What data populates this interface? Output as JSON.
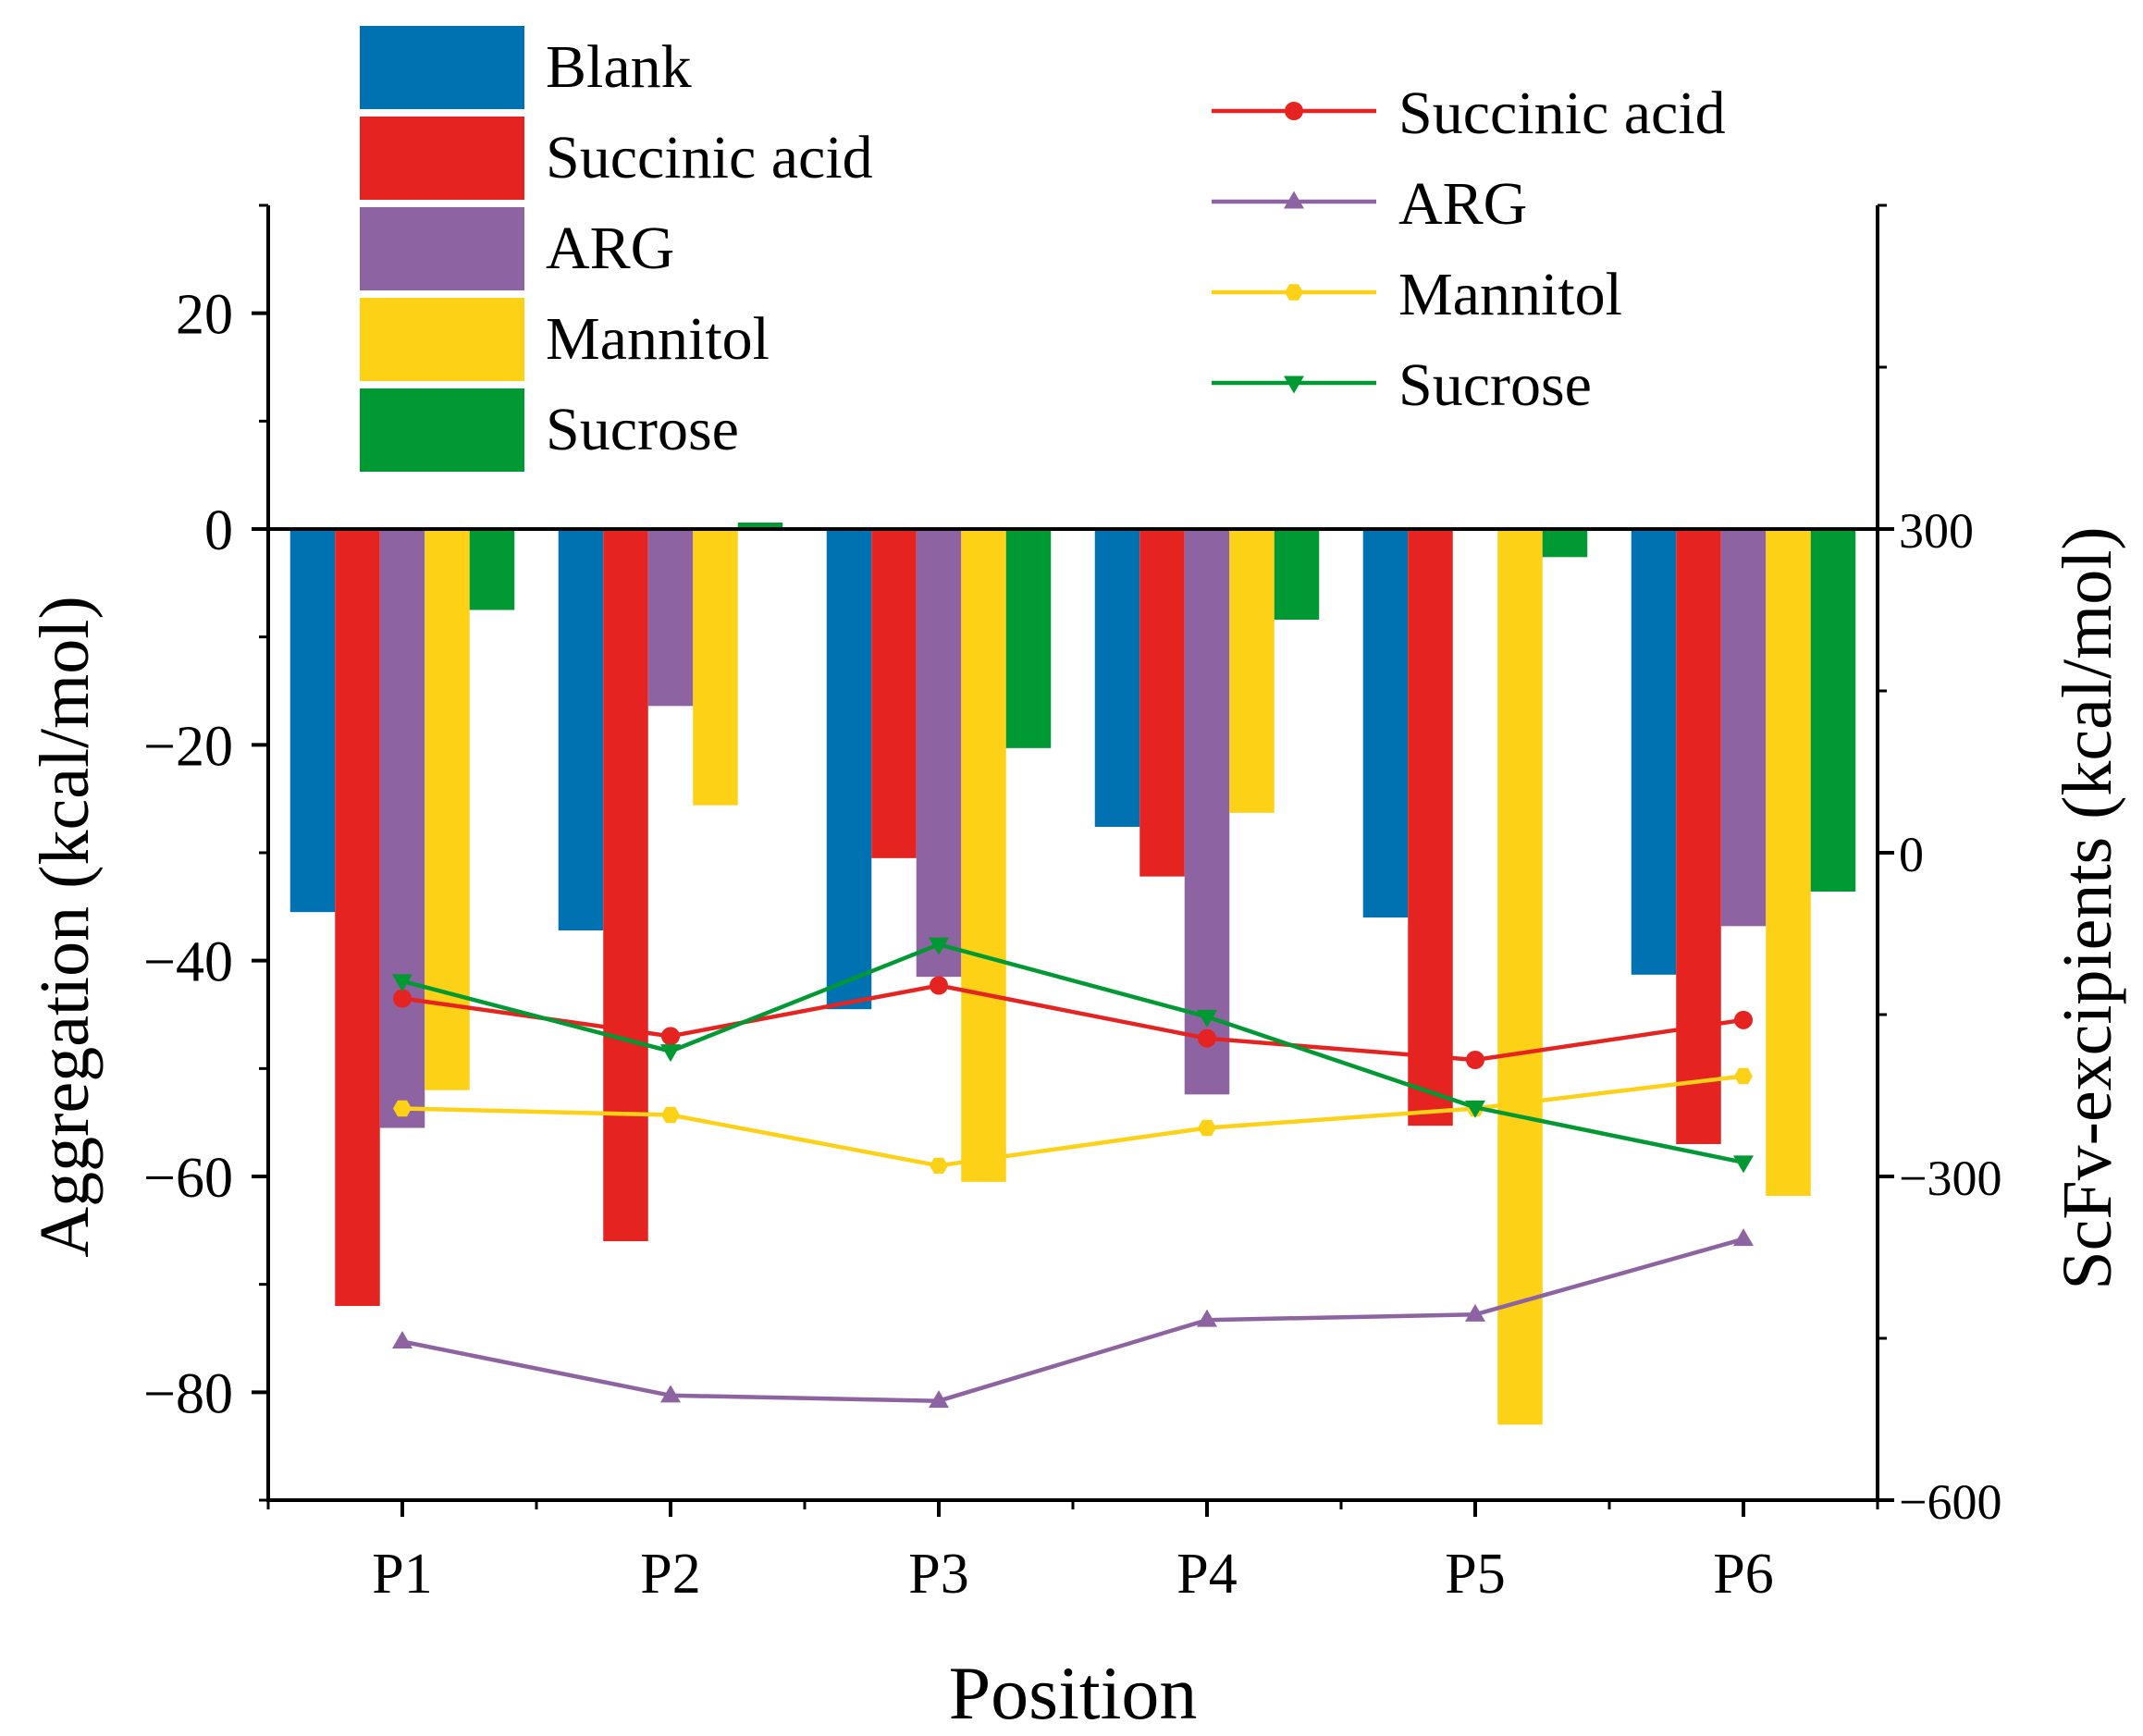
{
  "chart_data": {
    "type": "bar+line",
    "xlabel": "Position",
    "ylabel_left": "Aggregation (kcal/mol)",
    "ylabel_right": "ScFv-excipients (kcal/mol)",
    "categories": [
      "P1",
      "P2",
      "P3",
      "P4",
      "P5",
      "P6"
    ],
    "ylim_left": [
      -90,
      30
    ],
    "yticks_left": [
      20,
      0,
      -20,
      -40,
      -60,
      -80
    ],
    "ytick_labels_left": [
      "20",
      "0",
      "−20",
      "−40",
      "−60",
      "−80"
    ],
    "ylim_right": [
      -600,
      600
    ],
    "yticks_right": [
      300,
      0,
      -300,
      -600
    ],
    "ytick_labels_right": [
      "300",
      "0",
      "−300",
      "−600"
    ],
    "grid": false,
    "bar_series": [
      {
        "name": "Blank",
        "color": "#0072B2",
        "values": [
          -35.5,
          -37.2,
          -44.5,
          -27.6,
          -36.0,
          -41.3
        ]
      },
      {
        "name": "Succinic acid",
        "color": "#E52421",
        "values": [
          -72.0,
          -66.0,
          -30.5,
          -32.2,
          -55.3,
          -57.0
        ]
      },
      {
        "name": "ARG",
        "color": "#8E63A1",
        "values": [
          -55.5,
          -16.4,
          -41.5,
          -52.4,
          0.0,
          -36.8
        ]
      },
      {
        "name": "Mannitol",
        "color": "#FCD116",
        "values": [
          -52.0,
          -25.6,
          -60.5,
          -26.3,
          -83.0,
          -61.8
        ]
      },
      {
        "name": "Sucrose",
        "color": "#009933",
        "values": [
          -7.5,
          0.6,
          -20.3,
          -8.4,
          -2.6,
          -33.6
        ]
      }
    ],
    "line_series": [
      {
        "name": "Succinic acid",
        "color": "#E52421",
        "marker": "circle",
        "values": [
          -135,
          -170,
          -123,
          -172,
          -192,
          -155
        ]
      },
      {
        "name": "ARG",
        "color": "#8E63A1",
        "marker": "triangle-up",
        "values": [
          -453,
          -503,
          -508,
          -433,
          -428,
          -358
        ]
      },
      {
        "name": "Mannitol",
        "color": "#FCD116",
        "marker": "hexagon",
        "values": [
          -237,
          -243,
          -290,
          -255,
          -237,
          -207
        ]
      },
      {
        "name": "Sucrose",
        "color": "#009933",
        "marker": "triangle-down",
        "values": [
          -119,
          -184,
          -85,
          -152,
          -236,
          -287
        ]
      }
    ],
    "legend_bars_position": "top-left",
    "legend_lines_position": "top-right"
  }
}
